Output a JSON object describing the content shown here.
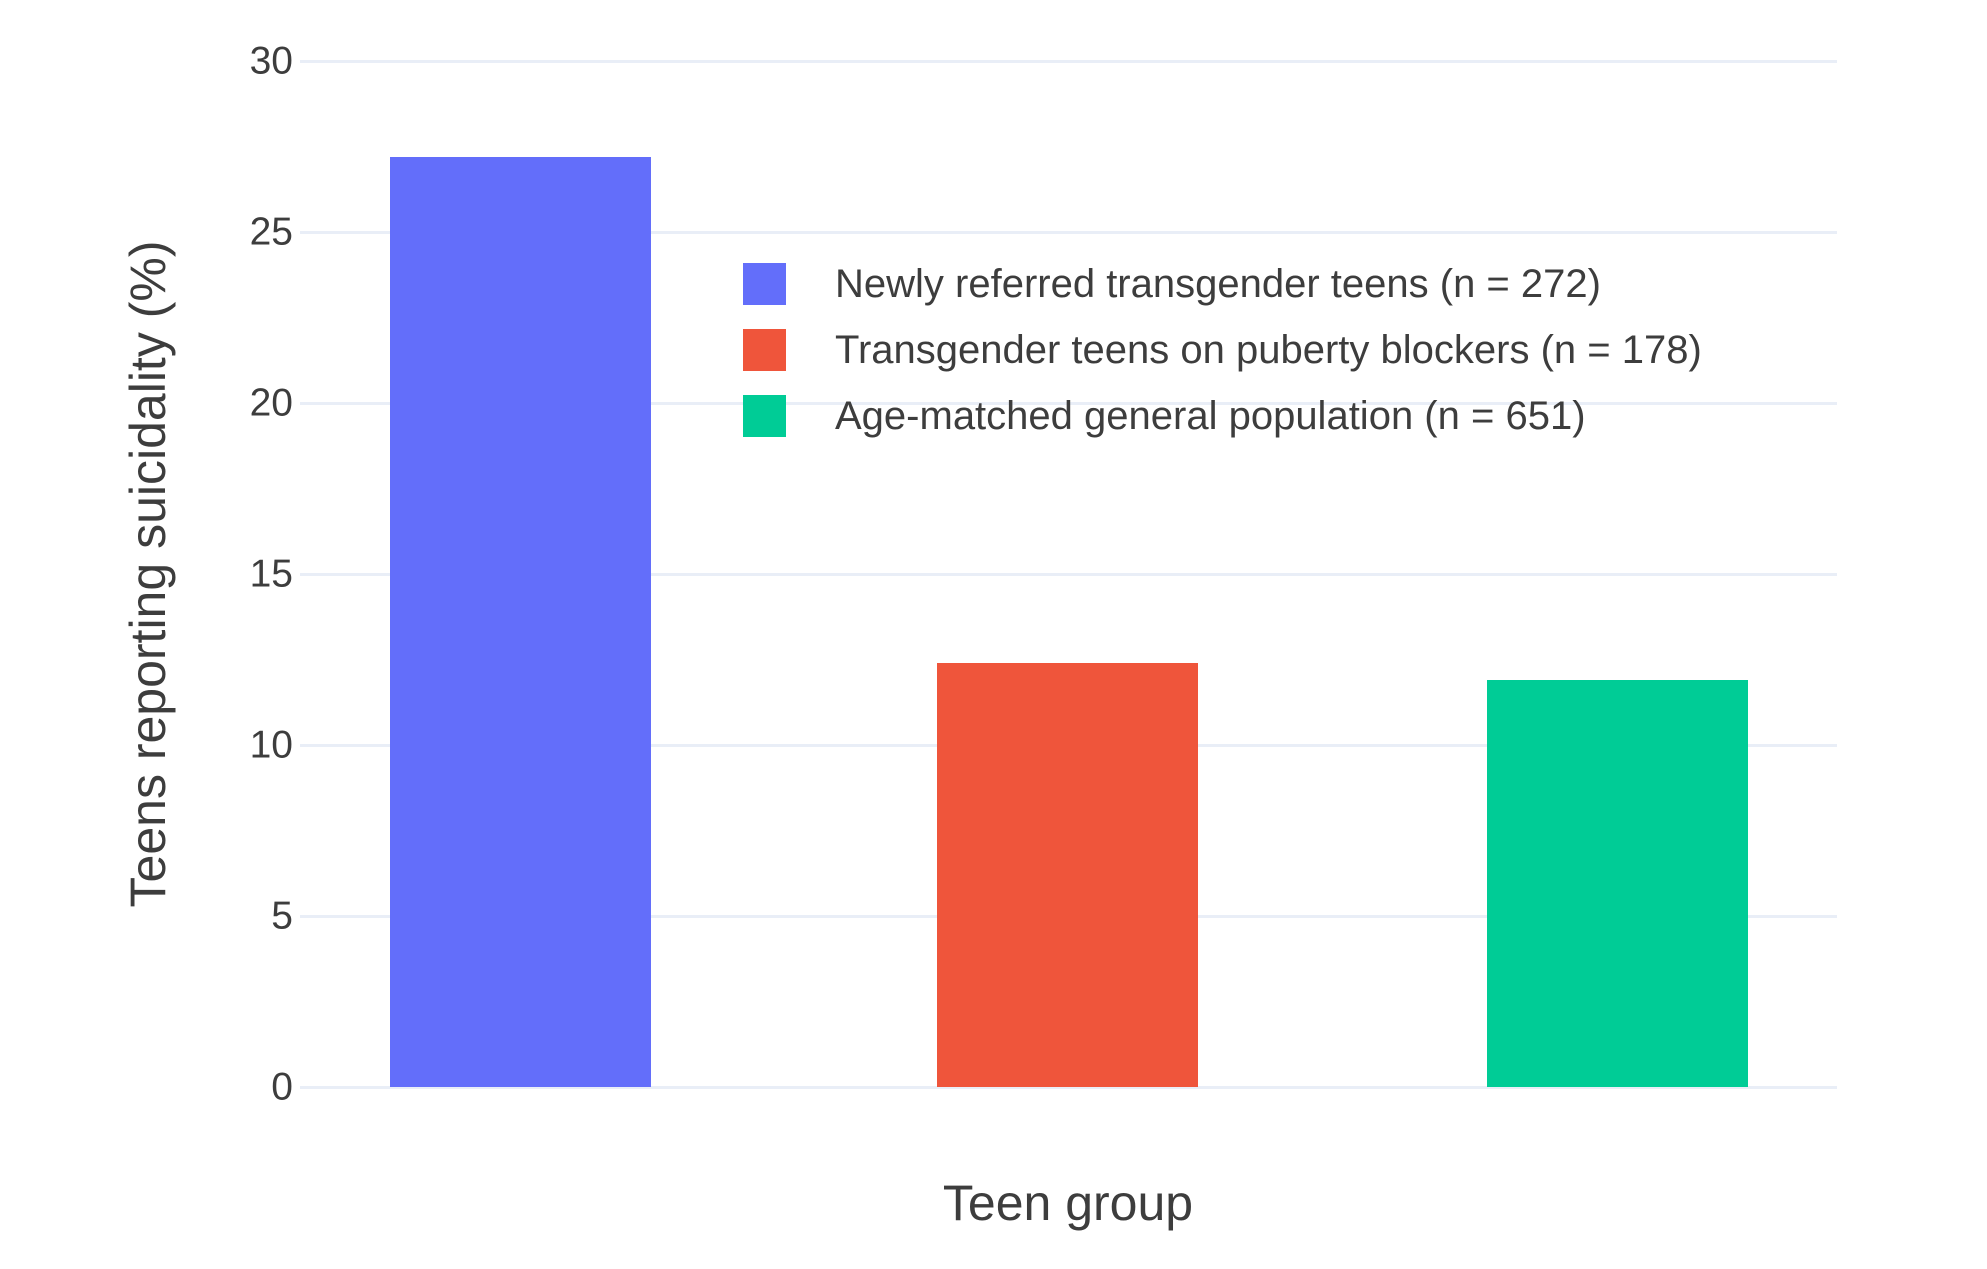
{
  "chart_data": {
    "type": "bar",
    "title": "",
    "xlabel": "Teen group",
    "ylabel": "Teens reporting suicidality (%)",
    "ylim": [
      0,
      30
    ],
    "yticks": [
      0,
      5,
      10,
      15,
      20,
      25,
      30
    ],
    "grid": true,
    "legend_position": "inside top-center",
    "categories": [
      "Newly referred transgender teens (n = 272)",
      "Transgender teens on puberty blockers (n = 178)",
      "Age-matched general population (n = 651)"
    ],
    "series": [
      {
        "name": "Newly referred transgender teens (n = 272)",
        "value": 27.2,
        "color": "#636EFA",
        "slug": "newly-referred-transgender-teens"
      },
      {
        "name": "Transgender teens on puberty blockers (n = 178)",
        "value": 12.4,
        "color": "#EF553B",
        "slug": "transgender-teens-on-puberty-blockers"
      },
      {
        "name": "Age-matched general population (n = 651)",
        "value": 11.9,
        "color": "#00CC96",
        "slug": "age-matched-general-population"
      }
    ],
    "colors": {
      "grid": "#e9eef7",
      "text": "#3d3d3d",
      "background": "#ffffff"
    }
  }
}
